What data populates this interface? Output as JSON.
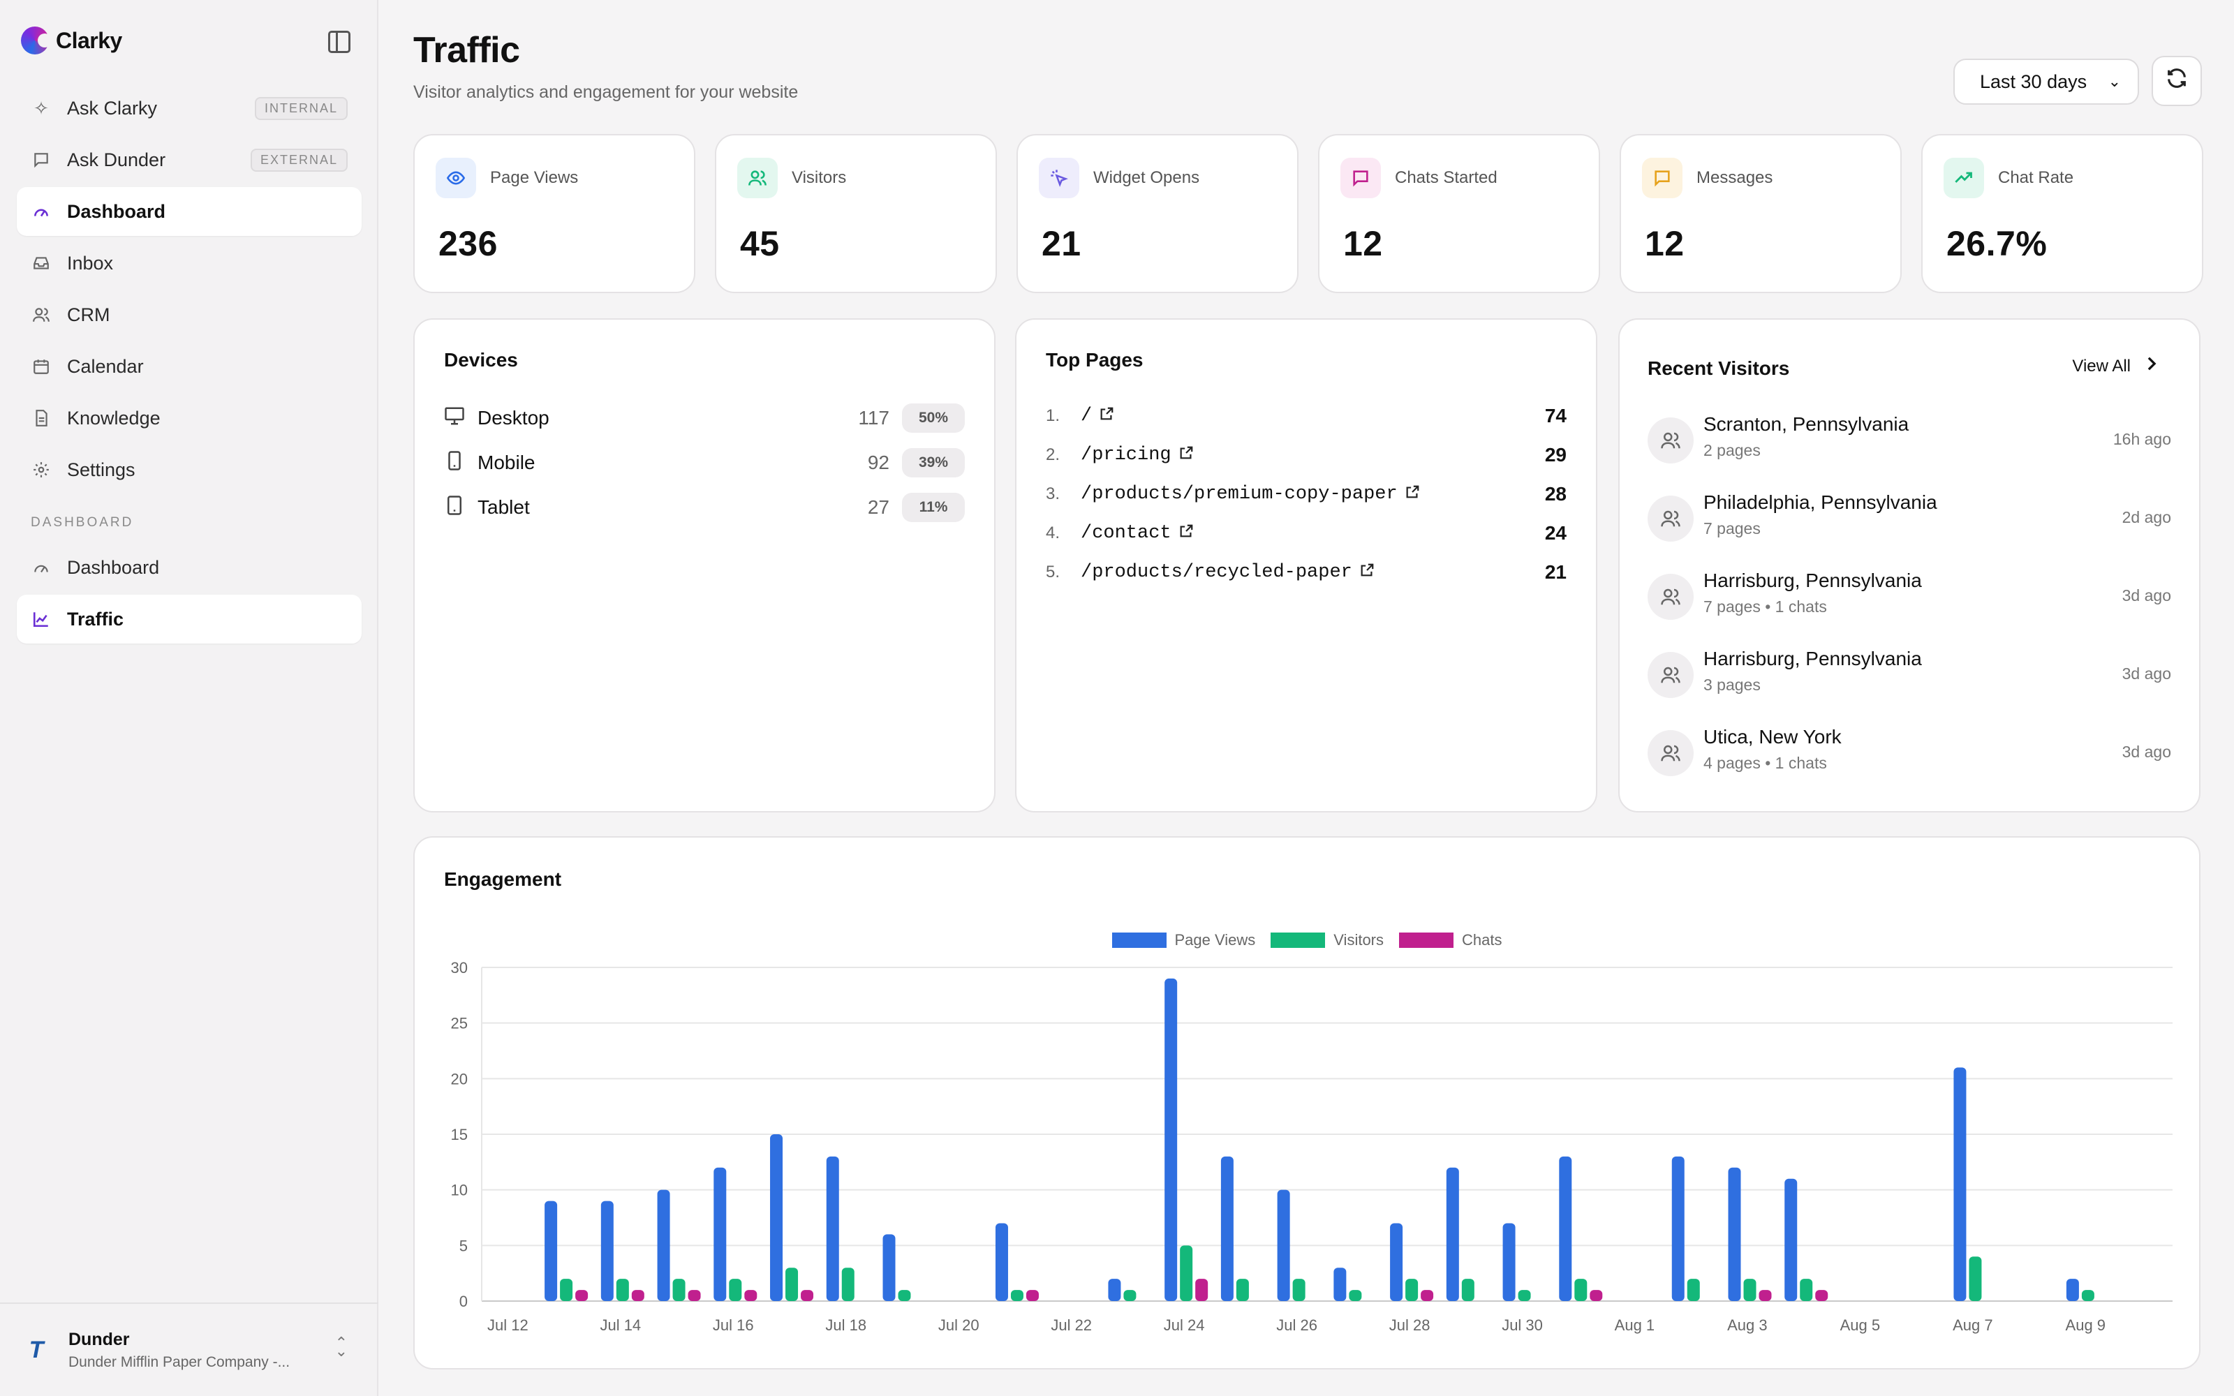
{
  "app": {
    "brand": "Clarky"
  },
  "sidebar": {
    "items": [
      {
        "label": "Ask Clarky",
        "badge": "INTERNAL",
        "icon": "sparkle-icon"
      },
      {
        "label": "Ask Dunder",
        "badge": "EXTERNAL",
        "icon": "chat-icon"
      },
      {
        "label": "Dashboard",
        "badge": "",
        "icon": "gauge-icon"
      },
      {
        "label": "Inbox",
        "badge": "",
        "icon": "inbox-icon"
      },
      {
        "label": "CRM",
        "badge": "",
        "icon": "users-icon"
      },
      {
        "label": "Calendar",
        "badge": "",
        "icon": "calendar-icon"
      },
      {
        "label": "Knowledge",
        "badge": "",
        "icon": "document-icon"
      },
      {
        "label": "Settings",
        "badge": "",
        "icon": "gear-icon"
      }
    ],
    "section_label": "DASHBOARD",
    "section_items": [
      {
        "label": "Dashboard",
        "icon": "gauge-icon"
      },
      {
        "label": "Traffic",
        "icon": "line-chart-icon"
      }
    ],
    "org": {
      "name": "Dunder",
      "subtitle": "Dunder Mifflin Paper Company -..."
    }
  },
  "header": {
    "title": "Traffic",
    "subtitle": "Visitor analytics and engagement for your website",
    "range": "Last 30 days"
  },
  "stats": [
    {
      "label": "Page Views",
      "value": "236",
      "icon": "eye-icon",
      "tint": "#e8f0fd",
      "color": "#2a6be8"
    },
    {
      "label": "Visitors",
      "value": "45",
      "icon": "users-icon",
      "tint": "#e3f7ef",
      "color": "#14b87a"
    },
    {
      "label": "Widget Opens",
      "value": "21",
      "icon": "cursor-click-icon",
      "tint": "#eeedfc",
      "color": "#6a5ae0"
    },
    {
      "label": "Chats Started",
      "value": "12",
      "icon": "chat-icon",
      "tint": "#fbe8f4",
      "color": "#c0208e"
    },
    {
      "label": "Messages",
      "value": "12",
      "icon": "message-icon",
      "tint": "#fdf3df",
      "color": "#e6a21c"
    },
    {
      "label": "Chat Rate",
      "value": "26.7%",
      "icon": "trend-up-icon",
      "tint": "#e3f7ef",
      "color": "#14b87a"
    }
  ],
  "devices": {
    "title": "Devices",
    "rows": [
      {
        "name": "Desktop",
        "count": "117",
        "pct": "50%",
        "icon": "monitor-icon"
      },
      {
        "name": "Mobile",
        "count": "92",
        "pct": "39%",
        "icon": "phone-icon"
      },
      {
        "name": "Tablet",
        "count": "27",
        "pct": "11%",
        "icon": "tablet-icon"
      }
    ]
  },
  "top_pages": {
    "title": "Top Pages",
    "rows": [
      {
        "rank": "1.",
        "path": "/",
        "count": "74"
      },
      {
        "rank": "2.",
        "path": "/pricing",
        "count": "29"
      },
      {
        "rank": "3.",
        "path": "/products/premium-copy-paper",
        "count": "28"
      },
      {
        "rank": "4.",
        "path": "/contact",
        "count": "24"
      },
      {
        "rank": "5.",
        "path": "/products/recycled-paper",
        "count": "21"
      }
    ]
  },
  "recent_visitors": {
    "title": "Recent Visitors",
    "view_all": "View All",
    "rows": [
      {
        "location": "Scranton, Pennsylvania",
        "meta": "2 pages",
        "time": "16h ago"
      },
      {
        "location": "Philadelphia, Pennsylvania",
        "meta": "7 pages",
        "time": "2d ago"
      },
      {
        "location": "Harrisburg, Pennsylvania",
        "meta": "7 pages • 1 chats",
        "time": "3d ago"
      },
      {
        "location": "Harrisburg, Pennsylvania",
        "meta": "3 pages",
        "time": "3d ago"
      },
      {
        "location": "Utica, New York",
        "meta": "4 pages • 1 chats",
        "time": "3d ago"
      }
    ]
  },
  "engagement": {
    "title": "Engagement"
  },
  "chart_data": {
    "type": "bar",
    "title": "",
    "xlabel": "",
    "ylabel": "",
    "ylim": [
      0,
      30
    ],
    "yticks": [
      0,
      5,
      10,
      15,
      20,
      25,
      30
    ],
    "grid": true,
    "legend": "top-center",
    "categories": [
      "Jul 12",
      "Jul 13",
      "Jul 14",
      "Jul 15",
      "Jul 16",
      "Jul 17",
      "Jul 18",
      "Jul 19",
      "Jul 20",
      "Jul 21",
      "Jul 22",
      "Jul 23",
      "Jul 24",
      "Jul 25",
      "Jul 26",
      "Jul 27",
      "Jul 28",
      "Jul 29",
      "Jul 30",
      "Jul 31",
      "Aug 1",
      "Aug 2",
      "Aug 3",
      "Aug 4",
      "Aug 5",
      "Aug 6",
      "Aug 7",
      "Aug 8",
      "Aug 9",
      "Aug 10"
    ],
    "tick_labels": [
      "Jul 12",
      "",
      "Jul 14",
      "",
      "Jul 16",
      "",
      "Jul 18",
      "",
      "Jul 20",
      "",
      "Jul 22",
      "",
      "Jul 24",
      "",
      "Jul 26",
      "",
      "Jul 28",
      "",
      "Jul 30",
      "",
      "Aug 1",
      "",
      "Aug 3",
      "",
      "Aug 5",
      "",
      "Aug 7",
      "",
      "Aug 9",
      ""
    ],
    "series": [
      {
        "name": "Page Views",
        "color": "#2f6fe0",
        "values": [
          0,
          9,
          9,
          10,
          12,
          15,
          13,
          6,
          0,
          7,
          0,
          2,
          29,
          13,
          10,
          3,
          7,
          12,
          7,
          13,
          0,
          13,
          12,
          11,
          0,
          0,
          21,
          0,
          2,
          0
        ]
      },
      {
        "name": "Visitors",
        "color": "#14b87a",
        "values": [
          0,
          2,
          2,
          2,
          2,
          3,
          3,
          1,
          0,
          1,
          0,
          1,
          5,
          2,
          2,
          1,
          2,
          2,
          1,
          2,
          0,
          2,
          2,
          2,
          0,
          0,
          4,
          0,
          1,
          0
        ]
      },
      {
        "name": "Chats",
        "color": "#c0208e",
        "values": [
          0,
          1,
          1,
          1,
          1,
          1,
          0,
          0,
          0,
          1,
          0,
          0,
          2,
          0,
          0,
          0,
          1,
          0,
          0,
          1,
          0,
          0,
          1,
          1,
          0,
          0,
          0,
          0,
          0,
          0
        ]
      }
    ]
  }
}
